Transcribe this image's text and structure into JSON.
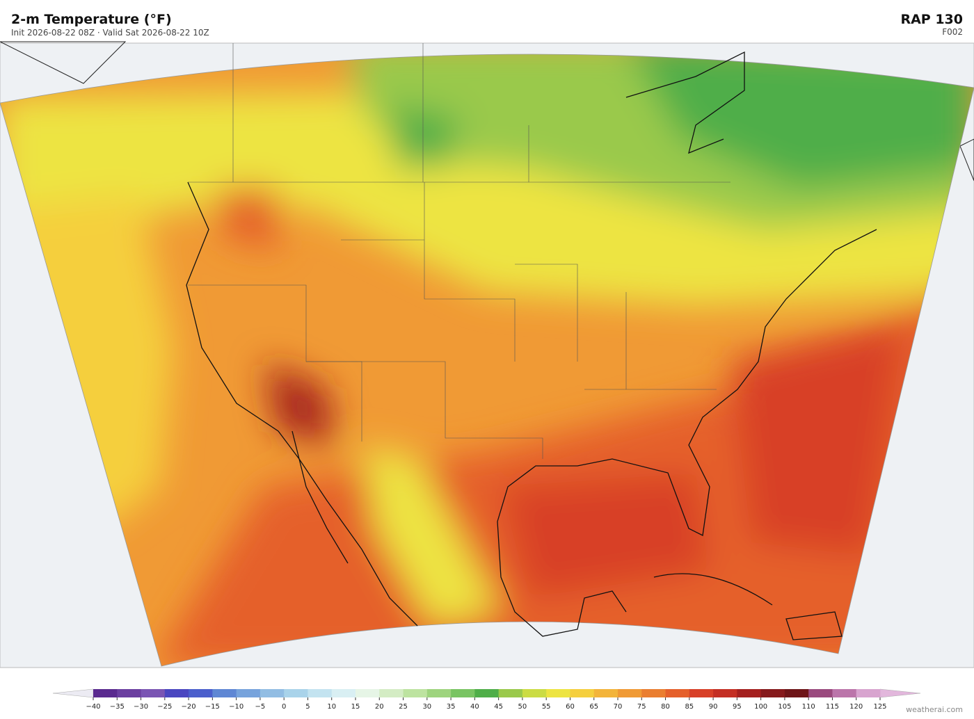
{
  "header": {
    "title": "2-m Temperature  (°F)",
    "subtitle": "Init 2026-08-22 08Z  ·  Valid Sat 2026-08-22 10Z",
    "model": "RAP  130",
    "forecast_hour": "F002"
  },
  "colorbar": {
    "ticks": [
      {
        "value": -40,
        "label": "−40"
      },
      {
        "value": -35,
        "label": "−35"
      },
      {
        "value": -30,
        "label": "−30"
      },
      {
        "value": -25,
        "label": "−25"
      },
      {
        "value": -20,
        "label": "−20"
      },
      {
        "value": -15,
        "label": "−15"
      },
      {
        "value": -10,
        "label": "−10"
      },
      {
        "value": -5,
        "label": "−5"
      },
      0,
      5,
      10,
      15,
      20,
      25,
      30,
      35,
      40,
      45,
      50,
      55,
      60,
      65,
      70,
      75,
      80,
      85,
      90,
      95,
      100,
      105,
      110,
      115,
      120,
      125
    ],
    "colors": [
      "#5a2a8f",
      "#6b3fa0",
      "#7a55b3",
      "#4a46c0",
      "#4b5fcc",
      "#5f87d4",
      "#77a3dc",
      "#92bde3",
      "#a9d3ea",
      "#c3e3f0",
      "#d9eff3",
      "#e6f5e6",
      "#d4ecc4",
      "#bde3a0",
      "#9ed47e",
      "#79c463",
      "#4fae49",
      "#9ac94b",
      "#cbdc44",
      "#ede442",
      "#f5cf3e",
      "#f3b43a",
      "#f09a35",
      "#ea7e30",
      "#e5602b",
      "#d84028",
      "#c42f24",
      "#a5201f",
      "#861a1c",
      "#6e1518",
      "#9a4a7e",
      "#bb75aa",
      "#d8a4cf"
    ],
    "under_color": "#ecebf3",
    "over_color": "#e2b7dc"
  },
  "footer": {
    "credit": "weatherai.com"
  }
}
